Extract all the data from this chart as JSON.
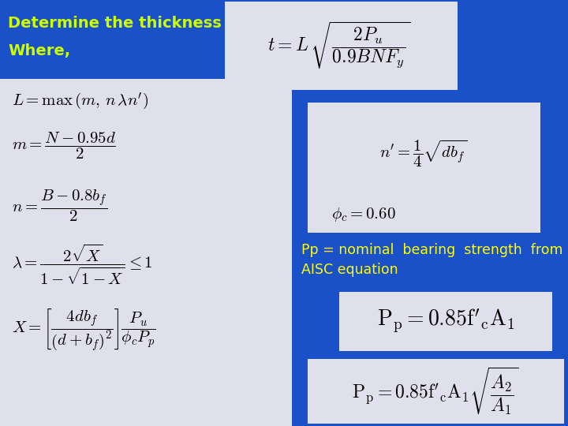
{
  "bg_color": "#1a50c8",
  "title_text": "Determine the thickness",
  "where_text": "Where,",
  "title_color": "#ccff00",
  "formula_bg": "#e0e0ec",
  "pp_text_color": "#ffff00",
  "pp_label": "Pp = nominal  bearing  strength  from\nAISC equation",
  "figsize": [
    7.2,
    5.4
  ],
  "dpi": 100
}
